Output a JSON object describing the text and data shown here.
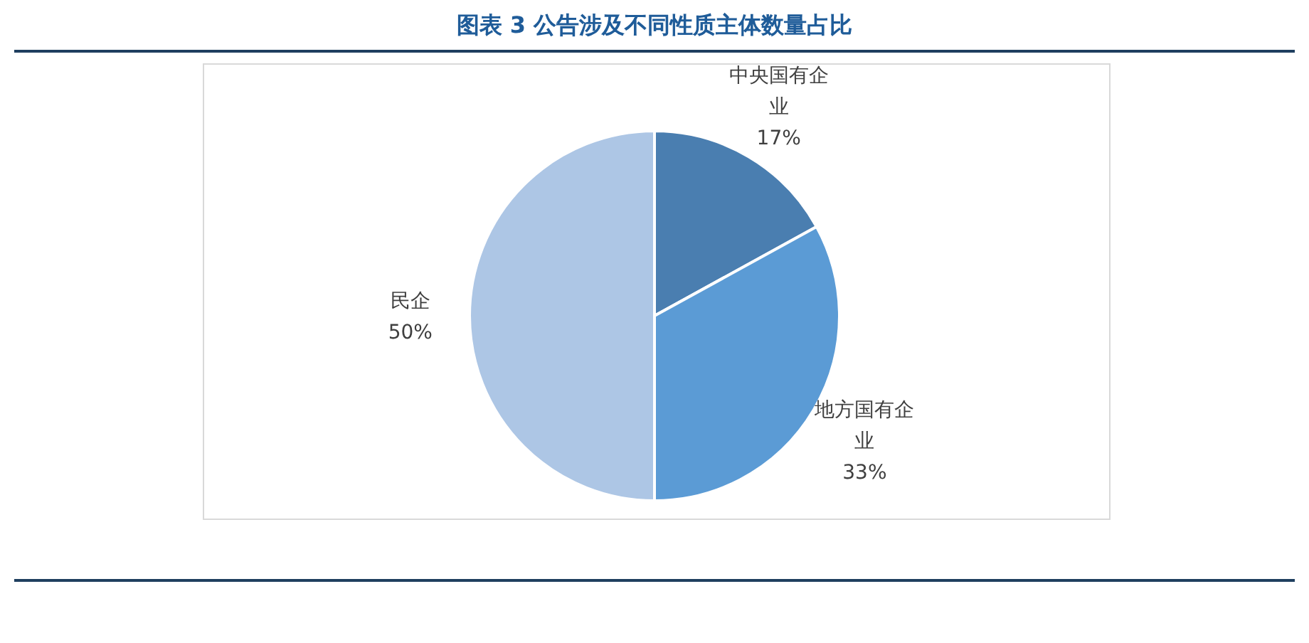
{
  "chart_data": {
    "type": "pie",
    "title": "图表 3 公告涉及不同性质主体数量占比",
    "categories": [
      "中央国有企业",
      "地方国有企业",
      "民企"
    ],
    "values": [
      17,
      33,
      50
    ],
    "colors": [
      "#4a7eb0",
      "#5b9bd5",
      "#adc6e5"
    ],
    "value_labels": [
      "17%",
      "33%",
      "50%"
    ]
  }
}
